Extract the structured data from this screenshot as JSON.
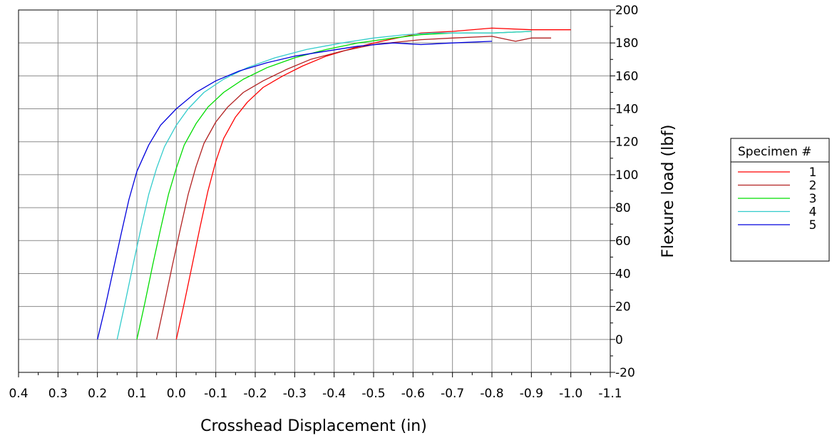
{
  "chart_data": {
    "type": "line",
    "title": "",
    "xlabel": "Crosshead Displacement (in)",
    "ylabel": "Flexure load (lbf)",
    "xlim": [
      0.4,
      -1.1
    ],
    "ylim": [
      -20,
      200
    ],
    "x_ticks": [
      "0.4",
      "0.3",
      "0.2",
      "0.1",
      "0.0",
      "-0.1",
      "-0.2",
      "-0.3",
      "-0.4",
      "-0.5",
      "-0.6",
      "-0.7",
      "-0.8",
      "-0.9",
      "-1.0",
      "-1.1"
    ],
    "y_ticks": [
      "-20",
      "0",
      "20",
      "40",
      "60",
      "80",
      "100",
      "120",
      "140",
      "160",
      "180",
      "200"
    ],
    "grid": true,
    "legend_title": "Specimen #",
    "legend_position": "right",
    "series": [
      {
        "name": "1",
        "color": "#ff0000",
        "x": [
          0.0,
          -0.02,
          -0.04,
          -0.06,
          -0.08,
          -0.1,
          -0.12,
          -0.15,
          -0.18,
          -0.22,
          -0.27,
          -0.32,
          -0.38,
          -0.45,
          -0.52,
          -0.58,
          -0.62,
          -0.7,
          -0.8,
          -0.9,
          -1.0
        ],
        "y": [
          0,
          22,
          45,
          68,
          90,
          108,
          122,
          135,
          144,
          153,
          160,
          166,
          172,
          177,
          181,
          184,
          186,
          187,
          189,
          188,
          188
        ]
      },
      {
        "name": "2",
        "color": "#b22222",
        "x": [
          0.05,
          0.03,
          0.01,
          -0.01,
          -0.03,
          -0.05,
          -0.07,
          -0.1,
          -0.13,
          -0.17,
          -0.22,
          -0.28,
          -0.34,
          -0.42,
          -0.5,
          -0.58,
          -0.62,
          -0.7,
          -0.8,
          -0.86,
          -0.9,
          -0.95
        ],
        "y": [
          0,
          22,
          45,
          67,
          88,
          105,
          119,
          132,
          141,
          150,
          157,
          164,
          170,
          175,
          179,
          181,
          182,
          183,
          184,
          181,
          183,
          183
        ]
      },
      {
        "name": "3",
        "color": "#00dd00",
        "x": [
          0.1,
          0.08,
          0.06,
          0.04,
          0.02,
          0.0,
          -0.02,
          -0.05,
          -0.08,
          -0.12,
          -0.17,
          -0.23,
          -0.3,
          -0.38,
          -0.46,
          -0.55,
          -0.62,
          -0.7,
          -0.8,
          -0.9
        ],
        "y": [
          0,
          22,
          45,
          67,
          88,
          104,
          118,
          131,
          141,
          150,
          158,
          165,
          171,
          176,
          180,
          183,
          185,
          186,
          186,
          187
        ]
      },
      {
        "name": "4",
        "color": "#33cccc",
        "x": [
          0.15,
          0.13,
          0.11,
          0.09,
          0.07,
          0.05,
          0.03,
          0.0,
          -0.03,
          -0.07,
          -0.12,
          -0.18,
          -0.25,
          -0.33,
          -0.42,
          -0.5,
          -0.58,
          -0.65,
          -0.72,
          -0.8,
          -0.9
        ],
        "y": [
          0,
          22,
          45,
          67,
          88,
          104,
          117,
          130,
          140,
          150,
          158,
          165,
          171,
          176,
          180,
          183,
          185,
          186,
          186,
          186,
          187
        ]
      },
      {
        "name": "5",
        "color": "#0000dd",
        "x": [
          0.2,
          0.18,
          0.16,
          0.14,
          0.12,
          0.1,
          0.07,
          0.04,
          0.0,
          -0.05,
          -0.1,
          -0.16,
          -0.23,
          -0.3,
          -0.38,
          -0.46,
          -0.55,
          -0.62,
          -0.7,
          -0.8
        ],
        "y": [
          0,
          20,
          42,
          64,
          85,
          102,
          118,
          130,
          140,
          150,
          157,
          163,
          168,
          172,
          175,
          178,
          180,
          179,
          180,
          181
        ]
      }
    ]
  }
}
